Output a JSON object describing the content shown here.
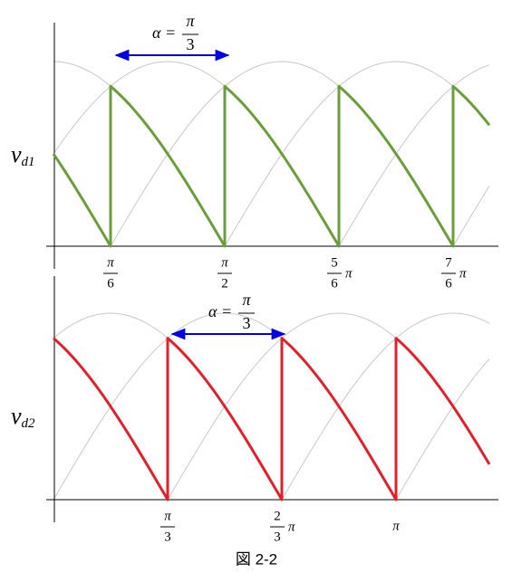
{
  "plots": [
    {
      "label": {
        "main": "v",
        "sub": "d1"
      },
      "alpha": {
        "symbol": "α =",
        "num": "π",
        "den": "3"
      },
      "ticks": [
        {
          "num": "π",
          "den": "6"
        },
        {
          "num": "π",
          "den": "2"
        },
        {
          "num": "5",
          "den": "6",
          "suffix": "π"
        },
        {
          "num": "7",
          "den": "6",
          "suffix": "π"
        }
      ]
    },
    {
      "label": {
        "main": "v",
        "sub": "d2"
      },
      "alpha": {
        "symbol": "α =",
        "num": "π",
        "den": "3"
      },
      "ticks": [
        {
          "num": "π",
          "den": "3"
        },
        {
          "num": "2",
          "den": "3",
          "suffix": "π"
        },
        {
          "text": "π"
        }
      ]
    }
  ],
  "caption": "図 2-2"
}
